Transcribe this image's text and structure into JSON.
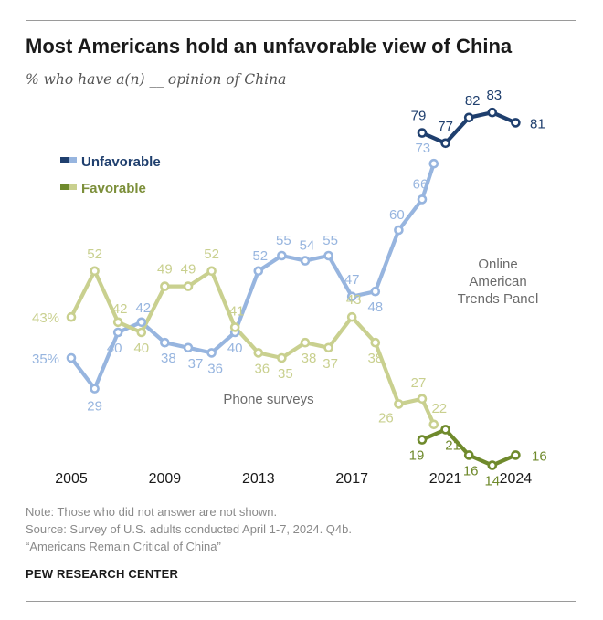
{
  "header": {
    "title": "Most Americans hold an unfavorable view of China",
    "subtitle": "% who have a(n) __ opinion of China"
  },
  "colors": {
    "unfav_phone": "#97b5df",
    "unfav_online": "#1f3f6e",
    "fav_phone": "#c9d08f",
    "fav_online": "#6f8a2c",
    "unfav_label": "#1f3f6e",
    "fav_label": "#7c8f3a"
  },
  "chart_data": {
    "type": "line",
    "title": "Most Americans hold an unfavorable view of China",
    "subtitle": "% who have a(n) __ opinion of China",
    "x_ticks": [
      "2005",
      "2009",
      "2013",
      "2017",
      "2021",
      "2024"
    ],
    "xlim": [
      2005,
      2024
    ],
    "ylim": [
      0,
      100
    ],
    "legend": [
      {
        "key": "unfavorable",
        "label": "Unfavorable"
      },
      {
        "key": "favorable",
        "label": "Favorable"
      }
    ],
    "legend_position": "top-left",
    "annotations": {
      "online": [
        "Online",
        "American",
        "Trends Panel"
      ],
      "phone": "Phone surveys"
    },
    "series": [
      {
        "name": "Unfavorable",
        "mode": "Phone surveys",
        "x": [
          2005,
          2006,
          2007,
          2008,
          2009,
          2010,
          2011,
          2012,
          2013,
          2014,
          2015,
          2016,
          2017,
          2018,
          2019,
          2020,
          2020.5
        ],
        "values": [
          35,
          29,
          40,
          42,
          38,
          37,
          36,
          40,
          52,
          55,
          54,
          55,
          47,
          48,
          60,
          66,
          73
        ],
        "labels": [
          "35%",
          "29",
          "40",
          "42",
          "38",
          "37",
          "36",
          "40",
          "52",
          "55",
          "54",
          "55",
          "47",
          "48",
          "60",
          "66",
          "73"
        ]
      },
      {
        "name": "Unfavorable",
        "mode": "Online American Trends Panel",
        "x": [
          2020,
          2021,
          2022,
          2023,
          2024
        ],
        "values": [
          79,
          77,
          82,
          83,
          81
        ],
        "labels": [
          "79",
          "77",
          "82",
          "83",
          "81"
        ]
      },
      {
        "name": "Favorable",
        "mode": "Phone surveys",
        "x": [
          2005,
          2006,
          2007,
          2008,
          2009,
          2010,
          2011,
          2012,
          2013,
          2014,
          2015,
          2016,
          2017,
          2018,
          2019,
          2020,
          2020.5
        ],
        "values": [
          43,
          52,
          42,
          40,
          49,
          49,
          52,
          41,
          36,
          35,
          38,
          37,
          43,
          38,
          26,
          27,
          22
        ],
        "labels": [
          "43%",
          "52",
          "42",
          "40",
          "49",
          "49",
          "52",
          "41",
          "36",
          "35",
          "38",
          "37",
          "43",
          "38",
          "26",
          "27",
          "22"
        ]
      },
      {
        "name": "Favorable",
        "mode": "Online American Trends Panel",
        "x": [
          2020,
          2021,
          2022,
          2023,
          2024
        ],
        "values": [
          19,
          21,
          16,
          14,
          16
        ],
        "labels": [
          "19",
          "21",
          "16",
          "14",
          "16"
        ]
      }
    ]
  },
  "footer": {
    "note": "Note: Those who did not answer are not shown.",
    "source_line1": "Source: Survey of U.S. adults conducted April 1-7, 2024. Q4b.",
    "source_line2": "“Americans Remain Critical of China”",
    "org": "PEW RESEARCH CENTER"
  }
}
